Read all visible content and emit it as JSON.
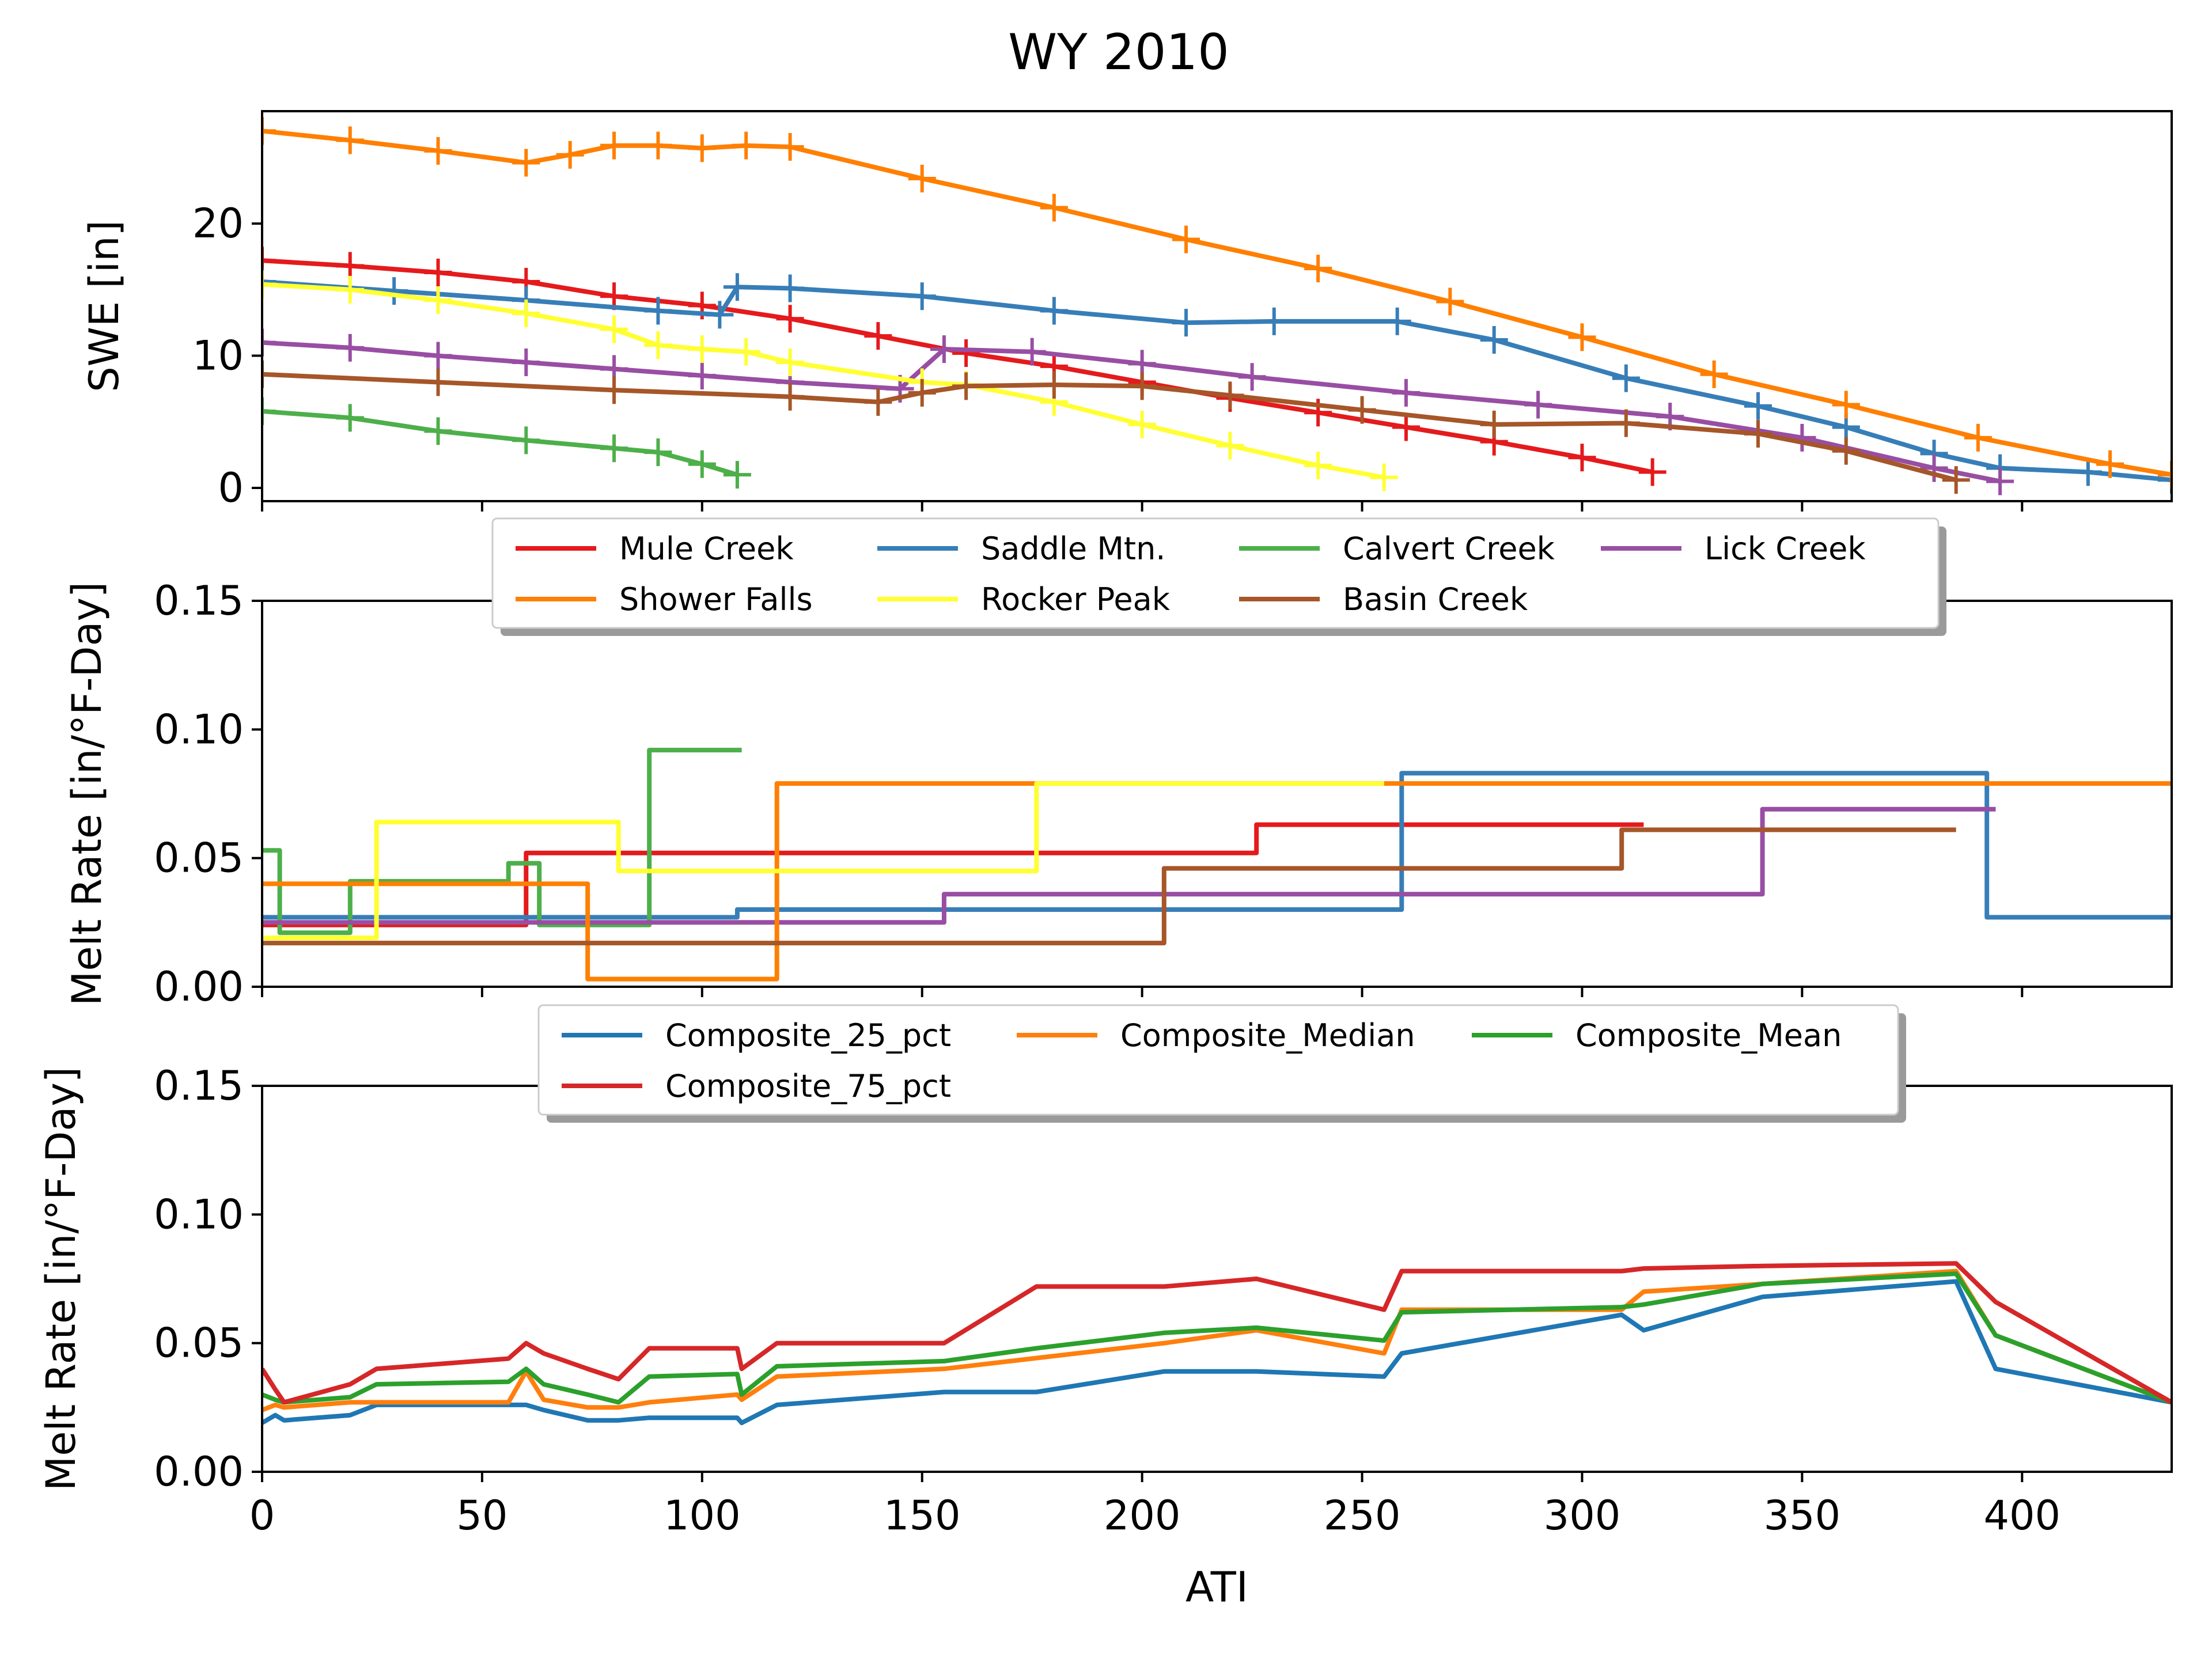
{
  "chart_data": [
    {
      "type": "line",
      "title": "WY 2010",
      "xlabel": "",
      "ylabel": "SWE [in]",
      "xlim": [
        0,
        434
      ],
      "ylim": [
        -1,
        28.5
      ],
      "xticks": [],
      "yticks": [
        0,
        10,
        20
      ],
      "ytick_labels": [
        "0",
        "10",
        "20"
      ],
      "grid": false,
      "markers": "plus",
      "series": [
        {
          "name": "Mule Creek",
          "color": "#e41a1c",
          "x": [
            0,
            20,
            40,
            60,
            80,
            100,
            120,
            140,
            160,
            180,
            200,
            220,
            240,
            260,
            280,
            300,
            316
          ],
          "y": [
            17.2,
            16.8,
            16.3,
            15.6,
            14.5,
            13.8,
            12.8,
            11.5,
            10.2,
            9.2,
            8.0,
            6.8,
            5.7,
            4.6,
            3.5,
            2.3,
            1.2
          ]
        },
        {
          "name": "Saddle Mtn.",
          "color": "#377eb8",
          "x": [
            0,
            30,
            60,
            90,
            104,
            108,
            120,
            150,
            180,
            210,
            230,
            258,
            280,
            310,
            340,
            360,
            380,
            395,
            415,
            434
          ],
          "y": [
            15.6,
            14.9,
            14.2,
            13.4,
            13.1,
            15.2,
            15.1,
            14.5,
            13.4,
            12.5,
            12.6,
            12.6,
            11.2,
            8.3,
            6.2,
            4.6,
            2.6,
            1.5,
            1.2,
            0.6
          ]
        },
        {
          "name": "Calvert Creek",
          "color": "#4daf4a",
          "x": [
            0,
            20,
            40,
            60,
            80,
            90,
            100,
            108
          ],
          "y": [
            5.8,
            5.3,
            4.3,
            3.6,
            3.0,
            2.7,
            1.8,
            1.0
          ]
        },
        {
          "name": "Lick Creek",
          "color": "#984ea3",
          "x": [
            0,
            20,
            40,
            60,
            80,
            100,
            120,
            145,
            155,
            175,
            200,
            225,
            260,
            290,
            320,
            350,
            380,
            395
          ],
          "y": [
            11.0,
            10.6,
            10.0,
            9.5,
            9.0,
            8.5,
            8.0,
            7.5,
            10.5,
            10.3,
            9.4,
            8.4,
            7.2,
            6.3,
            5.4,
            3.8,
            1.5,
            0.5
          ]
        },
        {
          "name": "Shower Falls",
          "color": "#ff7f00",
          "x": [
            0,
            20,
            40,
            60,
            70,
            80,
            90,
            100,
            110,
            120,
            150,
            180,
            210,
            240,
            270,
            300,
            330,
            360,
            390,
            420,
            434
          ],
          "y": [
            27.0,
            26.3,
            25.5,
            24.6,
            25.2,
            25.9,
            25.9,
            25.7,
            25.9,
            25.8,
            23.4,
            21.2,
            18.8,
            16.6,
            14.1,
            11.4,
            8.6,
            6.3,
            3.8,
            1.8,
            1.0
          ]
        },
        {
          "name": "Rocker Peak",
          "color": "#ffff33",
          "x": [
            0,
            20,
            40,
            60,
            80,
            90,
            100,
            110,
            120,
            150,
            160,
            180,
            200,
            220,
            240,
            255
          ],
          "y": [
            15.4,
            15.0,
            14.2,
            13.2,
            12.0,
            10.8,
            10.5,
            10.3,
            9.5,
            8.0,
            7.8,
            6.5,
            4.8,
            3.2,
            1.7,
            0.8
          ]
        },
        {
          "name": "Basin Creek",
          "color": "#a65628",
          "x": [
            0,
            40,
            80,
            120,
            140,
            150,
            160,
            180,
            200,
            220,
            250,
            280,
            310,
            340,
            360,
            385
          ],
          "y": [
            8.6,
            8.0,
            7.4,
            6.9,
            6.5,
            7.2,
            7.7,
            7.8,
            7.7,
            7.0,
            5.9,
            4.8,
            4.9,
            4.1,
            2.8,
            0.6
          ]
        }
      ]
    },
    {
      "type": "line",
      "title": "",
      "xlabel": "",
      "ylabel": "Melt Rate [in/°F-Day]",
      "xlim": [
        0,
        434
      ],
      "ylim": [
        0,
        0.15
      ],
      "xticks": [],
      "yticks": [
        0,
        0.05,
        0.1,
        0.15
      ],
      "ytick_labels": [
        "0.00",
        "0.05",
        "0.10",
        "0.15"
      ],
      "grid": false,
      "legend": "top-center",
      "step": true,
      "series": [
        {
          "name": "Mule Creek",
          "color": "#e41a1c",
          "x": [
            0,
            60,
            60,
            226,
            226,
            314
          ],
          "y": [
            0.024,
            0.024,
            0.052,
            0.052,
            0.063,
            0.063
          ]
        },
        {
          "name": "Saddle Mtn.",
          "color": "#377eb8",
          "x": [
            0,
            108,
            108,
            259,
            259,
            392,
            392,
            434
          ],
          "y": [
            0.027,
            0.027,
            0.03,
            0.03,
            0.083,
            0.083,
            0.027,
            0.027
          ]
        },
        {
          "name": "Calvert Creek",
          "color": "#4daf4a",
          "x": [
            0,
            4,
            4,
            20,
            20,
            56,
            56,
            63,
            63,
            88,
            88,
            109
          ],
          "y": [
            0.053,
            0.053,
            0.021,
            0.021,
            0.041,
            0.041,
            0.048,
            0.048,
            0.024,
            0.024,
            0.092,
            0.092
          ]
        },
        {
          "name": "Lick Creek",
          "color": "#984ea3",
          "x": [
            0,
            155,
            155,
            341,
            341,
            394
          ],
          "y": [
            0.025,
            0.025,
            0.036,
            0.036,
            0.069,
            0.069
          ]
        },
        {
          "name": "Shower Falls",
          "color": "#ff7f00",
          "x": [
            0,
            74,
            74,
            117,
            117,
            434
          ],
          "y": [
            0.04,
            0.04,
            0.003,
            0.003,
            0.079,
            0.079
          ]
        },
        {
          "name": "Rocker Peak",
          "color": "#ffff33",
          "x": [
            0,
            26,
            26,
            81,
            81,
            176,
            176,
            255
          ],
          "y": [
            0.019,
            0.019,
            0.064,
            0.064,
            0.045,
            0.045,
            0.079,
            0.079
          ]
        },
        {
          "name": "Basin Creek",
          "color": "#a65628",
          "x": [
            0,
            205,
            205,
            309,
            309,
            385
          ],
          "y": [
            0.017,
            0.017,
            0.046,
            0.046,
            0.061,
            0.061
          ]
        }
      ]
    },
    {
      "type": "line",
      "title": "",
      "xlabel": "ATI",
      "ylabel": "Melt Rate [in/°F-Day]",
      "xlim": [
        0,
        434
      ],
      "ylim": [
        0,
        0.15
      ],
      "xticks": [
        0,
        50,
        100,
        150,
        200,
        250,
        300,
        350,
        400
      ],
      "xtick_labels": [
        "0",
        "50",
        "100",
        "150",
        "200",
        "250",
        "300",
        "350",
        "400"
      ],
      "yticks": [
        0,
        0.05,
        0.1,
        0.15
      ],
      "ytick_labels": [
        "0.00",
        "0.05",
        "0.10",
        "0.15"
      ],
      "grid": false,
      "legend": "top-center",
      "series": [
        {
          "name": "Composite_25_pct",
          "color": "#1f77b4",
          "x": [
            0,
            3,
            5,
            20,
            26,
            60,
            64,
            74,
            81,
            88,
            108,
            109,
            117,
            155,
            176,
            205,
            226,
            255,
            259,
            309,
            314,
            341,
            385,
            394,
            434
          ],
          "y": [
            0.019,
            0.022,
            0.02,
            0.022,
            0.026,
            0.026,
            0.024,
            0.02,
            0.02,
            0.021,
            0.021,
            0.019,
            0.026,
            0.031,
            0.031,
            0.039,
            0.039,
            0.037,
            0.046,
            0.061,
            0.055,
            0.068,
            0.074,
            0.04,
            0.027
          ]
        },
        {
          "name": "Composite_Median",
          "color": "#ff7f0e",
          "x": [
            0,
            3,
            5,
            20,
            26,
            56,
            60,
            64,
            74,
            81,
            88,
            108,
            109,
            117,
            155,
            205,
            226,
            255,
            259,
            309,
            314,
            341,
            385,
            394,
            434
          ],
          "y": [
            0.024,
            0.026,
            0.025,
            0.027,
            0.027,
            0.027,
            0.039,
            0.028,
            0.025,
            0.025,
            0.027,
            0.03,
            0.028,
            0.037,
            0.04,
            0.05,
            0.055,
            0.046,
            0.063,
            0.063,
            0.07,
            0.073,
            0.078,
            0.053,
            0.027
          ]
        },
        {
          "name": "Composite_Mean",
          "color": "#2ca02c",
          "x": [
            0,
            3,
            5,
            20,
            26,
            56,
            60,
            64,
            74,
            81,
            88,
            108,
            109,
            117,
            155,
            176,
            205,
            226,
            255,
            259,
            309,
            314,
            341,
            385,
            394,
            434
          ],
          "y": [
            0.03,
            0.028,
            0.027,
            0.029,
            0.034,
            0.035,
            0.04,
            0.034,
            0.03,
            0.027,
            0.037,
            0.038,
            0.03,
            0.041,
            0.043,
            0.048,
            0.054,
            0.056,
            0.051,
            0.062,
            0.064,
            0.065,
            0.073,
            0.077,
            0.053,
            0.027
          ]
        },
        {
          "name": "Composite_75_pct",
          "color": "#d62728",
          "x": [
            0,
            3,
            5,
            20,
            26,
            56,
            60,
            64,
            74,
            81,
            88,
            108,
            109,
            117,
            155,
            176,
            205,
            226,
            255,
            259,
            309,
            314,
            341,
            385,
            394,
            434
          ],
          "y": [
            0.04,
            0.032,
            0.027,
            0.034,
            0.04,
            0.044,
            0.05,
            0.046,
            0.04,
            0.036,
            0.048,
            0.048,
            0.04,
            0.05,
            0.05,
            0.072,
            0.072,
            0.075,
            0.063,
            0.078,
            0.078,
            0.079,
            0.08,
            0.081,
            0.066,
            0.027
          ]
        }
      ]
    }
  ]
}
